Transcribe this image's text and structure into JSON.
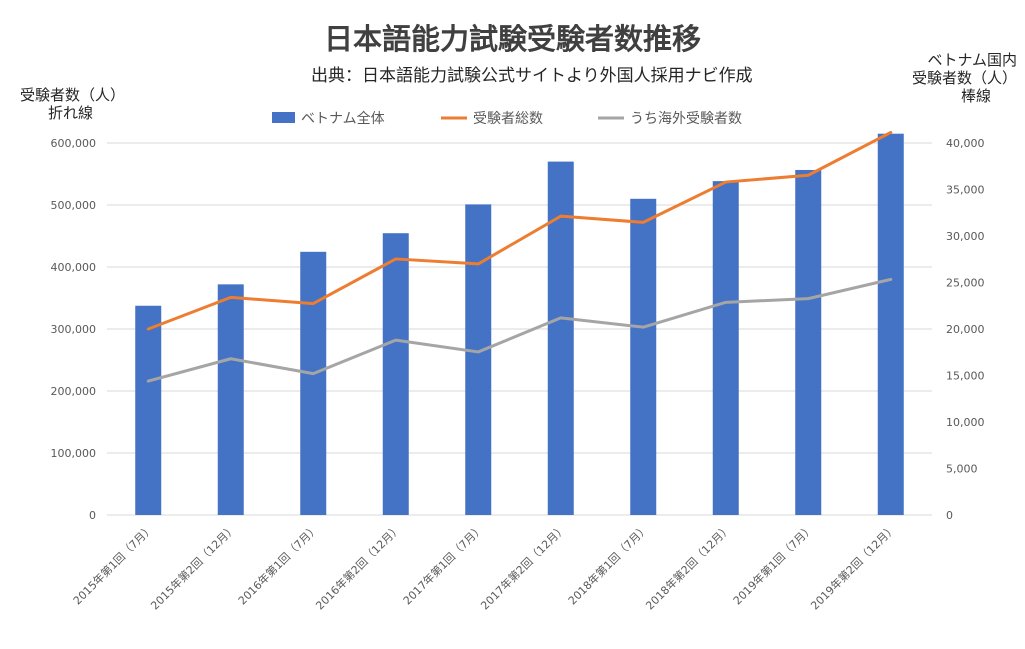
{
  "chart_data": {
    "type": "bar",
    "title": "日本語能力試験受験者数推移",
    "subtitle": "出典：日本語能力試験公式サイトより外国人採用ナビ作成",
    "ylabel_left": [
      "受験者数（人）",
      "折れ線"
    ],
    "ylabel_right": [
      "ベトナム国内",
      "受験者数（人）",
      "棒線"
    ],
    "categories": [
      "2015年第1回（7月）",
      "2015年第2回（12月）",
      "2016年第1回（7月）",
      "2016年第2回（12月）",
      "2017年第1回（7月）",
      "2017年第2回（12月）",
      "2018年第1回（7月）",
      "2018年第2回（12月）",
      "2019年第1回（7月）",
      "2019年第2回（12月）"
    ],
    "left_axis": {
      "min": 0,
      "max": 600000,
      "step": 100000,
      "ticks": [
        "0",
        "100,000",
        "200,000",
        "300,000",
        "400,000",
        "500,000",
        "600,000"
      ]
    },
    "right_axis": {
      "min": 0,
      "max": 40000,
      "step": 5000,
      "ticks": [
        "0",
        "5,000",
        "10,000",
        "15,000",
        "20,000",
        "25,000",
        "30,000",
        "35,000",
        "40,000"
      ]
    },
    "grid": true,
    "legend_position": "top",
    "series": [
      {
        "name": "ベトナム全体",
        "type": "bar",
        "axis": "right",
        "color": "#4472C4",
        "values": [
          22500,
          24800,
          28300,
          30300,
          33400,
          38000,
          34000,
          35900,
          37100,
          41000
        ]
      },
      {
        "name": "受験者総数",
        "type": "line",
        "axis": "left",
        "color": "#ED7D31",
        "values": [
          300000,
          351000,
          341000,
          413000,
          405000,
          482000,
          472000,
          537000,
          548000,
          617000
        ]
      },
      {
        "name": "うち海外受験者数",
        "type": "line",
        "axis": "left",
        "color": "#A5A5A5",
        "values": [
          216000,
          252000,
          228000,
          282000,
          263000,
          318000,
          303000,
          343000,
          349000,
          380000
        ]
      }
    ]
  }
}
